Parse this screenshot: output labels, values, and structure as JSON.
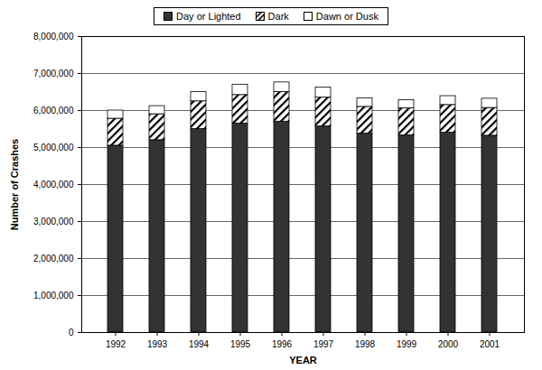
{
  "chart_data": {
    "type": "bar",
    "stacked": true,
    "grid": true,
    "legend": "top",
    "xlabel": "YEAR",
    "ylabel": "Number of Crashes",
    "categories": [
      "1992",
      "1993",
      "1994",
      "1995",
      "1996",
      "1997",
      "1998",
      "1999",
      "2000",
      "2001"
    ],
    "series": [
      {
        "name": "Day or Lighted",
        "color": "#333333",
        "values": [
          5050000,
          5200000,
          5500000,
          5650000,
          5700000,
          5570000,
          5380000,
          5330000,
          5400000,
          5320000
        ]
      },
      {
        "name": "Dark",
        "color": "#000000",
        "line_style": "hatched",
        "values": [
          730000,
          700000,
          750000,
          770000,
          800000,
          780000,
          720000,
          730000,
          750000,
          750000
        ]
      },
      {
        "name": "Dawn or Dusk",
        "color": "#ffffff",
        "values": [
          220000,
          220000,
          250000,
          280000,
          260000,
          270000,
          230000,
          220000,
          240000,
          250000
        ]
      }
    ],
    "ylim": [
      0,
      8000000
    ],
    "yticks": [
      0,
      {
        "value": 1000000,
        "label": "1,000,000"
      },
      {
        "value": 2000000,
        "label": "2,000,000"
      },
      {
        "value": 3000000,
        "label": "3,000,000"
      },
      {
        "value": 4000000,
        "label": "4,000,000"
      },
      {
        "value": 5000000,
        "label": "5,000,000"
      },
      {
        "value": 6000000,
        "label": "6,000,000"
      },
      {
        "value": 7000000,
        "label": "7,000,000"
      },
      {
        "value": 8000000,
        "label": "8,000,000"
      }
    ]
  }
}
